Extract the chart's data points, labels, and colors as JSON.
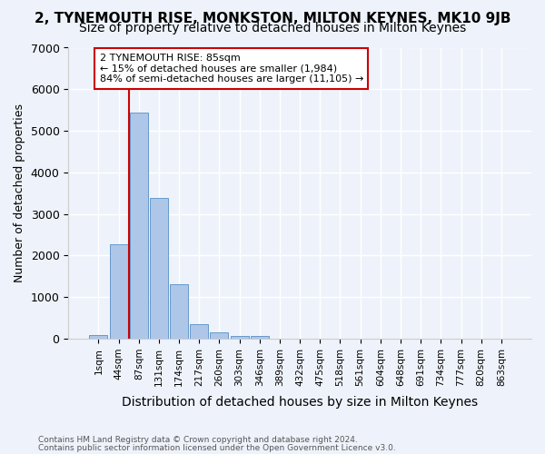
{
  "title": "2, TYNEMOUTH RISE, MONKSTON, MILTON KEYNES, MK10 9JB",
  "subtitle": "Size of property relative to detached houses in Milton Keynes",
  "xlabel": "Distribution of detached houses by size in Milton Keynes",
  "ylabel": "Number of detached properties",
  "footnote1": "Contains HM Land Registry data © Crown copyright and database right 2024.",
  "footnote2": "Contains public sector information licensed under the Open Government Licence v3.0.",
  "annotation_title": "2 TYNEMOUTH RISE: 85sqm",
  "annotation_line1": "← 15% of detached houses are smaller (1,984)",
  "annotation_line2": "84% of semi-detached houses are larger (11,105) →",
  "bar_values": [
    80,
    2270,
    5430,
    3380,
    1310,
    360,
    155,
    60,
    60,
    0,
    0,
    0,
    0,
    0,
    0,
    0,
    0,
    0,
    0,
    0,
    0
  ],
  "categories": [
    "1sqm",
    "44sqm",
    "87sqm",
    "131sqm",
    "174sqm",
    "217sqm",
    "260sqm",
    "303sqm",
    "346sqm",
    "389sqm",
    "432sqm",
    "475sqm",
    "518sqm",
    "561sqm",
    "604sqm",
    "648sqm",
    "691sqm",
    "734sqm",
    "777sqm",
    "820sqm",
    "863sqm"
  ],
  "bar_color": "#aec6e8",
  "bar_edge_color": "#6699cc",
  "vline_color": "#cc0000",
  "annotation_box_edge": "#cc0000",
  "ylim": [
    0,
    7000
  ],
  "yticks": [
    0,
    1000,
    2000,
    3000,
    4000,
    5000,
    6000,
    7000
  ],
  "background_color": "#eef3fb",
  "grid_color": "#ffffff",
  "title_fontsize": 11,
  "subtitle_fontsize": 10
}
